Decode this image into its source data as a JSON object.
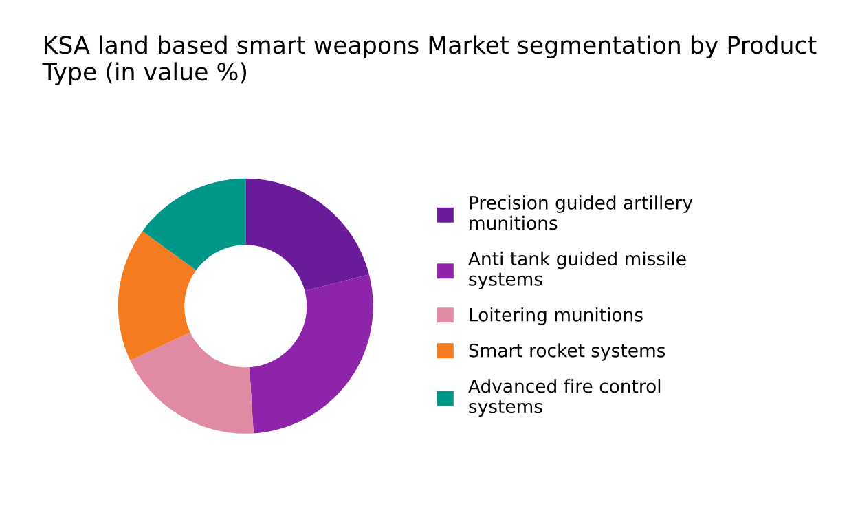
{
  "chart_data": {
    "type": "donut",
    "title": "KSA land based smart weapons Market segmentation by Product Type (in value %)",
    "categories": [
      "Precision guided artillery\nmunitions",
      "Anti tank guided missile\nsystems",
      "Loitering munitions",
      "Smart rocket systems",
      "Advanced fire control\nsystems"
    ],
    "values": [
      21,
      28,
      19,
      17,
      15
    ],
    "colors": [
      "#6a1b9a",
      "#8e24aa",
      "#e08aa3",
      "#f47b20",
      "#009688"
    ],
    "legend": "right"
  }
}
